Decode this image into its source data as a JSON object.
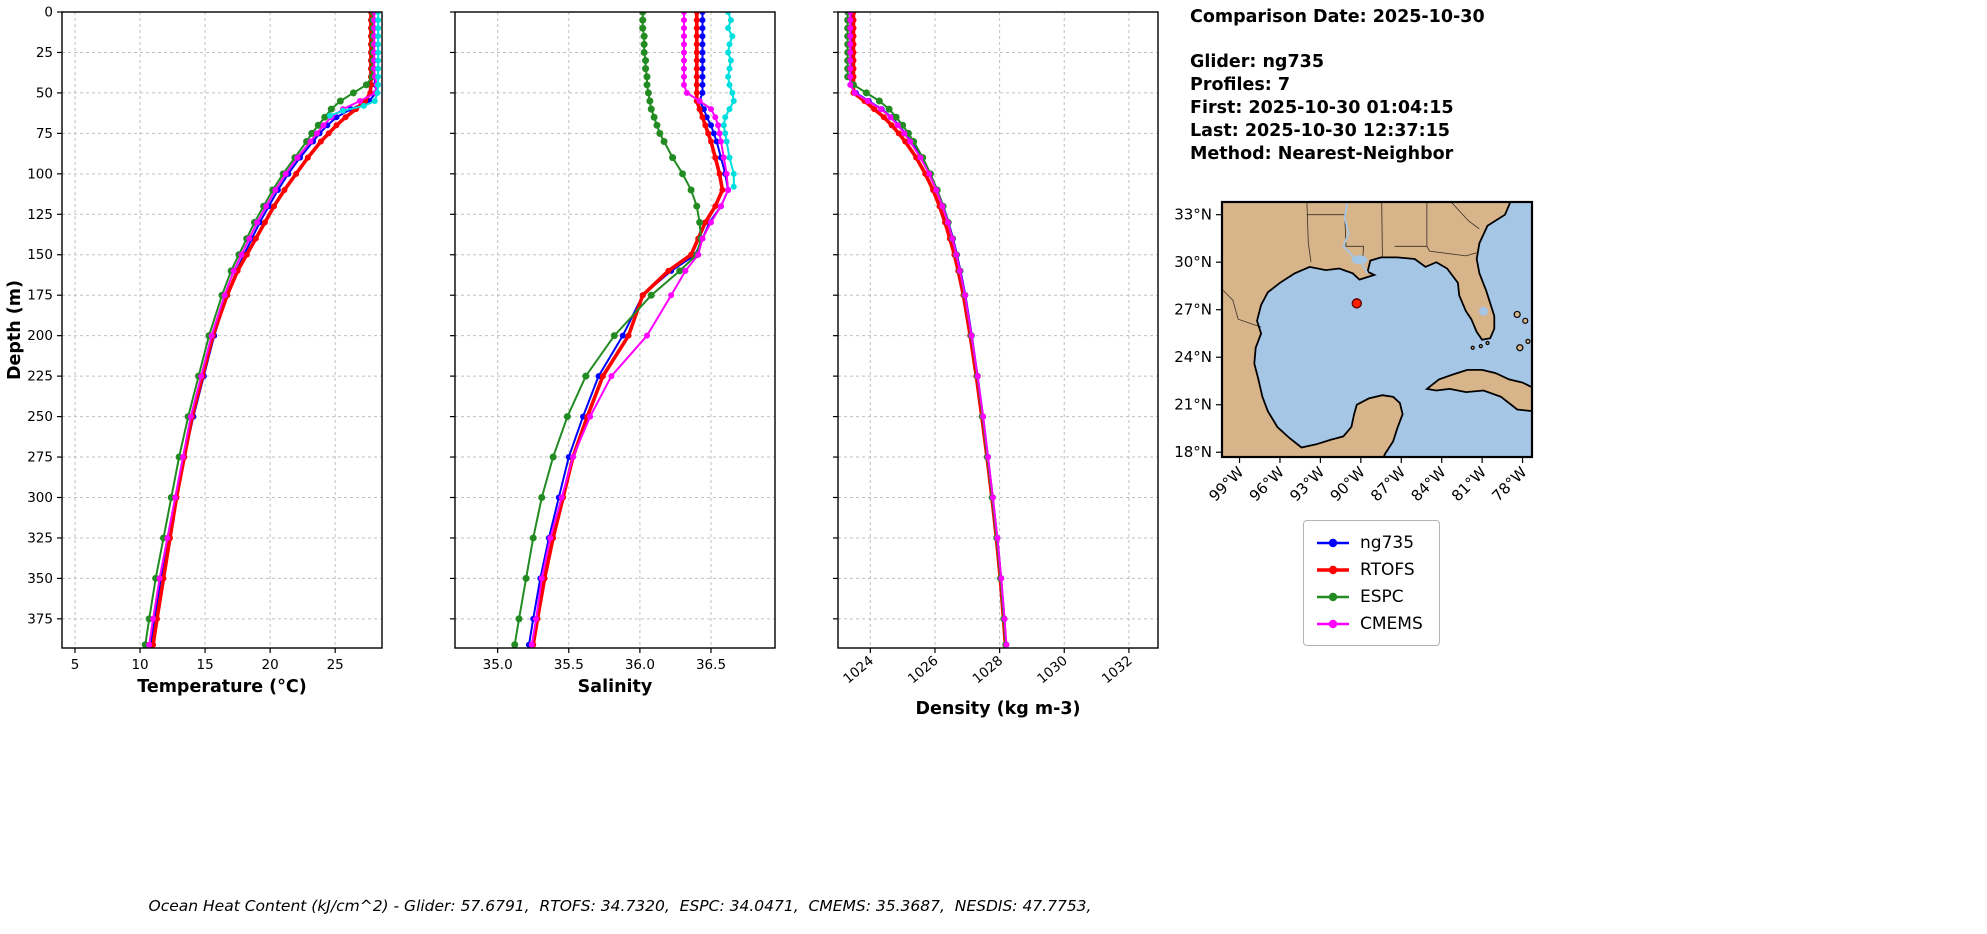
{
  "info": {
    "comparison_date": "Comparison Date: 2025-10-30",
    "glider": "Glider: ng735",
    "profiles": "Profiles: 7",
    "first": "First: 2025-10-30 01:04:15",
    "last": "Last: 2025-10-30 12:37:15",
    "method": "Method: Nearest-Neighbor"
  },
  "footer": {
    "ohc_text": "Ocean Heat Content (kJ/cm^2) - Glider: 57.6791,  RTOFS: 34.7320,  ESPC: 34.0471,  CMEMS: 35.3687,  NESDIS: 47.7753,"
  },
  "legend": {
    "items": [
      {
        "label": "ng735",
        "color": "#0000ff",
        "lw": 2.5
      },
      {
        "label": "RTOFS",
        "color": "#ff0000",
        "lw": 3.5
      },
      {
        "label": "ESPC",
        "color": "#228b22",
        "lw": 2.5
      },
      {
        "label": "CMEMS",
        "color": "#ff00ff",
        "lw": 2.5
      }
    ]
  },
  "map": {
    "extent": {
      "lon": [
        -100.3,
        -77.3
      ],
      "lat": [
        17.7,
        33.8
      ]
    },
    "lat_tick_values": [
      33,
      30,
      27,
      24,
      21,
      18
    ],
    "lat_tick_labels": [
      "33°N",
      "30°N",
      "27°N",
      "24°N",
      "21°N",
      "18°N"
    ],
    "lon_tick_values": [
      -99,
      -96,
      -93,
      -90,
      -87,
      -84,
      -81,
      -78
    ],
    "lon_tick_labels": [
      "99°W",
      "96°W",
      "93°W",
      "90°W",
      "87°W",
      "84°W",
      "81°W",
      "78°W"
    ],
    "colors": {
      "land": "#d8b48a",
      "water": "#a6c6e6",
      "coast": "#000000"
    },
    "marker": {
      "lon": -90.3,
      "lat": 27.4,
      "color": "#ff2000",
      "edge": "#600000"
    }
  },
  "chart_data": [
    {
      "id": "temperature",
      "type": "line",
      "xlabel": "Temperature (°C)",
      "ylabel": "Depth (m)",
      "xlim": [
        4.0,
        28.6
      ],
      "ylim": [
        0,
        393
      ],
      "xticks": [
        5,
        10,
        15,
        20,
        25
      ],
      "xtick_labels": [
        "5",
        "10",
        "15",
        "20",
        "25"
      ],
      "yticks": [
        0,
        25,
        50,
        75,
        100,
        125,
        150,
        175,
        200,
        225,
        250,
        275,
        300,
        325,
        350,
        375
      ],
      "rotate_xticks": false,
      "show_yticks": true,
      "depth": [
        0,
        5,
        10,
        15,
        20,
        25,
        30,
        35,
        40,
        45,
        50,
        55,
        60,
        65,
        70,
        75,
        80,
        90,
        100,
        110,
        120,
        130,
        140,
        150,
        160,
        175,
        200,
        225,
        250,
        275,
        300,
        325,
        350,
        375,
        391
      ],
      "series": [
        {
          "name": "ng735",
          "color": "#0000ff",
          "lw": 2,
          "ms": 3,
          "values": [
            27.9,
            27.9,
            27.9,
            27.9,
            27.9,
            27.9,
            27.9,
            27.95,
            28.0,
            28.1,
            28.15,
            27.6,
            26.2,
            25.1,
            24.4,
            23.8,
            23.3,
            22.3,
            21.4,
            20.6,
            19.9,
            19.2,
            18.6,
            18.0,
            17.4,
            16.7,
            15.7,
            14.9,
            14.1,
            13.4,
            12.8,
            12.2,
            11.6,
            11.1,
            10.8
          ]
        },
        {
          "name": "RTOFS",
          "color": "#ff0000",
          "lw": 3.6,
          "ms": 3,
          "values": [
            27.75,
            27.75,
            27.75,
            27.75,
            27.75,
            27.75,
            27.75,
            27.75,
            27.75,
            27.75,
            27.7,
            27.3,
            26.6,
            25.8,
            25.1,
            24.5,
            23.9,
            22.9,
            22.0,
            21.1,
            20.3,
            19.6,
            18.9,
            18.2,
            17.5,
            16.7,
            15.6,
            14.8,
            14.0,
            13.4,
            12.8,
            12.3,
            11.8,
            11.3,
            11.0
          ]
        },
        {
          "name": "ESPC",
          "color": "#228b22",
          "lw": 2,
          "ms": 3.5,
          "values": [
            27.9,
            27.9,
            27.9,
            27.9,
            27.9,
            27.9,
            27.9,
            27.9,
            27.85,
            27.4,
            26.4,
            25.4,
            24.7,
            24.2,
            23.7,
            23.2,
            22.8,
            21.9,
            21.0,
            20.2,
            19.5,
            18.8,
            18.2,
            17.6,
            17.0,
            16.3,
            15.3,
            14.5,
            13.7,
            13.0,
            12.4,
            11.8,
            11.2,
            10.7,
            10.4
          ]
        },
        {
          "name": "CMEMS",
          "color": "#ff00ff",
          "lw": 2,
          "ms": 3,
          "values": [
            28.0,
            28.0,
            28.0,
            28.0,
            28.0,
            28.0,
            28.0,
            28.0,
            28.05,
            28.2,
            28.1,
            26.9,
            25.6,
            24.7,
            24.1,
            23.6,
            23.1,
            22.1,
            21.2,
            20.4,
            19.7,
            19.0,
            18.4,
            17.8,
            17.2,
            16.5,
            15.5,
            14.7,
            13.9,
            13.3,
            12.7,
            12.1,
            11.5,
            11.0,
            10.7
          ]
        },
        {
          "name": "unlabeled-cyan",
          "color": "#00dede",
          "lw": 2,
          "ms": 3,
          "depth": [
            0,
            5,
            10,
            15,
            20,
            25,
            30,
            35,
            40,
            45,
            50,
            55,
            58,
            61,
            64
          ],
          "values": [
            28.3,
            28.3,
            28.3,
            28.3,
            28.3,
            28.3,
            28.3,
            28.3,
            28.3,
            28.3,
            28.25,
            28.05,
            27.2,
            25.6,
            24.6
          ]
        }
      ]
    },
    {
      "id": "salinity",
      "type": "line",
      "xlabel": "Salinity",
      "ylabel": "Depth (m)",
      "xlim": [
        34.7,
        36.95
      ],
      "ylim": [
        0,
        393
      ],
      "xticks": [
        35.0,
        35.5,
        36.0,
        36.5
      ],
      "xtick_labels": [
        "35.0",
        "35.5",
        "36.0",
        "36.5"
      ],
      "yticks": [
        0,
        25,
        50,
        75,
        100,
        125,
        150,
        175,
        200,
        225,
        250,
        275,
        300,
        325,
        350,
        375
      ],
      "rotate_xticks": false,
      "show_yticks": false,
      "depth": [
        0,
        5,
        10,
        15,
        20,
        25,
        30,
        35,
        40,
        45,
        50,
        55,
        60,
        65,
        70,
        75,
        80,
        90,
        100,
        110,
        120,
        130,
        140,
        150,
        160,
        175,
        200,
        225,
        250,
        275,
        300,
        325,
        350,
        375,
        391
      ],
      "series": [
        {
          "name": "ng735",
          "color": "#0000ff",
          "lw": 2,
          "ms": 3,
          "values": [
            36.44,
            36.44,
            36.44,
            36.44,
            36.44,
            36.44,
            36.44,
            36.44,
            36.44,
            36.44,
            36.44,
            36.42,
            36.45,
            36.47,
            36.5,
            36.52,
            36.54,
            36.57,
            36.6,
            36.62,
            36.57,
            36.49,
            36.44,
            36.39,
            36.22,
            36.02,
            35.88,
            35.71,
            35.6,
            35.5,
            35.43,
            35.36,
            35.3,
            35.25,
            35.22
          ]
        },
        {
          "name": "RTOFS",
          "color": "#ff0000",
          "lw": 3.6,
          "ms": 3,
          "values": [
            36.4,
            36.4,
            36.4,
            36.4,
            36.4,
            36.4,
            36.4,
            36.4,
            36.4,
            36.4,
            36.4,
            36.4,
            36.42,
            36.44,
            36.46,
            36.48,
            36.5,
            36.53,
            36.56,
            36.58,
            36.53,
            36.46,
            36.41,
            36.36,
            36.2,
            36.02,
            35.92,
            35.74,
            35.63,
            35.53,
            35.46,
            35.39,
            35.33,
            35.28,
            35.25
          ]
        },
        {
          "name": "ESPC",
          "color": "#228b22",
          "lw": 2,
          "ms": 3.5,
          "values": [
            36.02,
            36.02,
            36.02,
            36.03,
            36.03,
            36.03,
            36.04,
            36.04,
            36.05,
            36.05,
            36.06,
            36.07,
            36.08,
            36.1,
            36.12,
            36.14,
            36.17,
            36.23,
            36.3,
            36.36,
            36.4,
            36.42,
            36.43,
            36.4,
            36.28,
            36.08,
            35.82,
            35.62,
            35.49,
            35.39,
            35.31,
            35.25,
            35.2,
            35.15,
            35.12
          ]
        },
        {
          "name": "CMEMS",
          "color": "#ff00ff",
          "lw": 2,
          "ms": 3,
          "values": [
            36.31,
            36.31,
            36.31,
            36.31,
            36.31,
            36.31,
            36.31,
            36.31,
            36.31,
            36.31,
            36.33,
            36.42,
            36.5,
            36.53,
            36.55,
            36.56,
            36.57,
            36.59,
            36.61,
            36.62,
            36.57,
            36.5,
            36.44,
            36.41,
            36.32,
            36.22,
            36.05,
            35.8,
            35.65,
            35.53,
            35.45,
            35.37,
            35.31,
            35.27,
            35.24
          ]
        },
        {
          "name": "unlabeled-cyan",
          "color": "#00dede",
          "lw": 2,
          "ms": 3,
          "depth": [
            0,
            5,
            10,
            15,
            20,
            25,
            30,
            35,
            40,
            45,
            50,
            55,
            60,
            65,
            70,
            75,
            80,
            90,
            100,
            108
          ],
          "values": [
            36.62,
            36.64,
            36.62,
            36.65,
            36.63,
            36.62,
            36.64,
            36.63,
            36.62,
            36.63,
            36.65,
            36.66,
            36.63,
            36.6,
            36.59,
            36.6,
            36.61,
            36.63,
            36.66,
            36.66
          ]
        }
      ]
    },
    {
      "id": "density",
      "type": "line",
      "xlabel": "Density (kg m-3)",
      "ylabel": "Depth (m)",
      "xlim": [
        1023.0,
        1032.9
      ],
      "ylim": [
        0,
        393
      ],
      "xticks": [
        1024,
        1026,
        1028,
        1030,
        1032
      ],
      "xtick_labels": [
        "1024",
        "1026",
        "1028",
        "1030",
        "1032"
      ],
      "yticks": [
        0,
        25,
        50,
        75,
        100,
        125,
        150,
        175,
        200,
        225,
        250,
        275,
        300,
        325,
        350,
        375
      ],
      "rotate_xticks": true,
      "show_yticks": false,
      "depth": [
        0,
        5,
        10,
        15,
        20,
        25,
        30,
        35,
        40,
        45,
        50,
        55,
        60,
        65,
        70,
        75,
        80,
        90,
        100,
        110,
        120,
        130,
        140,
        150,
        160,
        175,
        200,
        225,
        250,
        275,
        300,
        325,
        350,
        375,
        391
      ],
      "series": [
        {
          "name": "ng735",
          "color": "#0000ff",
          "lw": 2,
          "ms": 3,
          "values": [
            1023.42,
            1023.42,
            1023.42,
            1023.42,
            1023.42,
            1023.42,
            1023.42,
            1023.42,
            1023.42,
            1023.42,
            1023.55,
            1023.95,
            1024.35,
            1024.65,
            1024.88,
            1025.08,
            1025.26,
            1025.58,
            1025.85,
            1026.07,
            1026.26,
            1026.42,
            1026.56,
            1026.68,
            1026.79,
            1026.94,
            1027.14,
            1027.32,
            1027.49,
            1027.64,
            1027.79,
            1027.93,
            1028.05,
            1028.15,
            1028.2
          ]
        },
        {
          "name": "RTOFS",
          "color": "#ff0000",
          "lw": 3.6,
          "ms": 3,
          "values": [
            1023.48,
            1023.48,
            1023.48,
            1023.48,
            1023.48,
            1023.48,
            1023.48,
            1023.48,
            1023.48,
            1023.48,
            1023.48,
            1023.82,
            1024.12,
            1024.42,
            1024.66,
            1024.88,
            1025.08,
            1025.42,
            1025.7,
            1025.94,
            1026.14,
            1026.31,
            1026.46,
            1026.6,
            1026.72,
            1026.88,
            1027.09,
            1027.28,
            1027.45,
            1027.61,
            1027.76,
            1027.9,
            1028.02,
            1028.12,
            1028.18
          ]
        },
        {
          "name": "ESPC",
          "color": "#228b22",
          "lw": 2,
          "ms": 3.5,
          "values": [
            1023.3,
            1023.3,
            1023.3,
            1023.3,
            1023.3,
            1023.3,
            1023.3,
            1023.3,
            1023.3,
            1023.48,
            1023.88,
            1024.28,
            1024.58,
            1024.8,
            1025.0,
            1025.18,
            1025.34,
            1025.62,
            1025.86,
            1026.07,
            1026.25,
            1026.41,
            1026.54,
            1026.66,
            1026.77,
            1026.92,
            1027.12,
            1027.31,
            1027.47,
            1027.62,
            1027.77,
            1027.91,
            1028.03,
            1028.13,
            1028.19
          ]
        },
        {
          "name": "CMEMS",
          "color": "#ff00ff",
          "lw": 2,
          "ms": 3,
          "values": [
            1023.38,
            1023.38,
            1023.38,
            1023.38,
            1023.38,
            1023.38,
            1023.38,
            1023.38,
            1023.38,
            1023.38,
            1023.52,
            1023.92,
            1024.33,
            1024.62,
            1024.85,
            1025.05,
            1025.23,
            1025.55,
            1025.82,
            1026.04,
            1026.23,
            1026.4,
            1026.54,
            1026.66,
            1026.77,
            1026.93,
            1027.13,
            1027.32,
            1027.49,
            1027.64,
            1027.79,
            1027.93,
            1028.05,
            1028.15,
            1028.21
          ]
        }
      ]
    }
  ]
}
